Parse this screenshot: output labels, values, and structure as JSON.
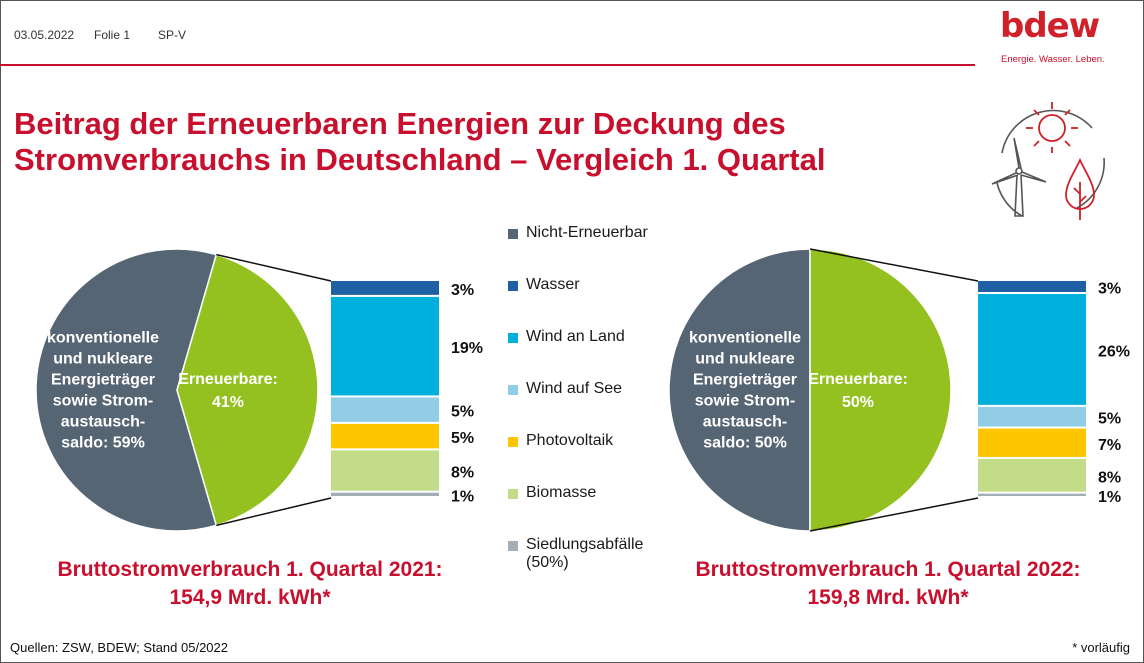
{
  "header": {
    "date": "03.05.2022",
    "slide": "Folie 1",
    "code": "SP-V"
  },
  "logo": {
    "name": "bdew",
    "tagline": "Energie. Wasser. Leben."
  },
  "title_line1": "Beitrag der Erneuerbaren Energien zur Deckung des",
  "title_line2": "Stromverbrauchs in Deutschland – Vergleich 1. Quartal",
  "legend": [
    {
      "label": "Nicht-Erneuerbar",
      "color": "#566573"
    },
    {
      "label": "Wasser",
      "color": "#1f5fa3"
    },
    {
      "label": "Wind an Land",
      "color": "#00b0dc"
    },
    {
      "label": "Wind auf See",
      "color": "#92cde6"
    },
    {
      "label": "Photovoltaik",
      "color": "#fdc600"
    },
    {
      "label": "Biomasse",
      "color": "#c3dc8a"
    },
    {
      "label": "Siedlungsabfälle",
      "label2": "(50%)",
      "color": "#a4aeb6"
    }
  ],
  "chart_data": [
    {
      "type": "pie",
      "slices": [
        {
          "label": "konventionelle und nukleare Energieträger sowie Strom-austausch-saldo: 59%",
          "value": 59,
          "color": "#566573"
        },
        {
          "label": "Erneuerbare: 41%",
          "value": 41,
          "color": "#94c11f"
        }
      ],
      "breakdown": {
        "type": "bar",
        "stacked": true,
        "series": [
          {
            "name": "Wasser",
            "value": 3,
            "label": "3%"
          },
          {
            "name": "Wind an Land",
            "value": 19,
            "label": "19%"
          },
          {
            "name": "Wind auf See",
            "value": 5,
            "label": "5%"
          },
          {
            "name": "Photovoltaik",
            "value": 5,
            "label": "5%"
          },
          {
            "name": "Biomasse",
            "value": 8,
            "label": "8%"
          },
          {
            "name": "Siedlungsabfälle",
            "value": 1,
            "label": "1%"
          }
        ]
      },
      "total_line1": "Bruttostromverbrauch 1. Quartal 2021:",
      "total_line2": "154,9 Mrd. kWh*"
    },
    {
      "type": "pie",
      "slices": [
        {
          "label": "konventionelle und nukleare Energieträger sowie Strom-austausch-saldo: 50%",
          "value": 50,
          "color": "#566573"
        },
        {
          "label": "Erneuerbare: 50%",
          "value": 50,
          "color": "#94c11f"
        }
      ],
      "breakdown": {
        "type": "bar",
        "stacked": true,
        "series": [
          {
            "name": "Wasser",
            "value": 3,
            "label": "3%"
          },
          {
            "name": "Wind an Land",
            "value": 26,
            "label": "26%"
          },
          {
            "name": "Wind auf See",
            "value": 5,
            "label": "5%"
          },
          {
            "name": "Photovoltaik",
            "value": 7,
            "label": "7%"
          },
          {
            "name": "Biomasse",
            "value": 8,
            "label": "8%"
          },
          {
            "name": "Siedlungsabfälle",
            "value": 1,
            "label": "1%"
          }
        ]
      },
      "total_line1": "Bruttostromverbrauch 1. Quartal 2022:",
      "total_line2": "159,8 Mrd. kWh*"
    }
  ],
  "pie_text": {
    "left": {
      "conv": [
        "konventionelle",
        "und nukleare",
        "Energieträger",
        "sowie Strom-",
        "austausch-",
        "saldo: 59%"
      ],
      "ren": [
        "Erneuerbare:",
        "41%"
      ]
    },
    "right": {
      "conv": [
        "konventionelle",
        "und nukleare",
        "Energieträger",
        "sowie Strom-",
        "austausch-",
        "saldo: 50%"
      ],
      "ren": [
        "Erneuerbare:",
        "50%"
      ]
    }
  },
  "footer": {
    "source": "Quellen: ZSW, BDEW; Stand 05/2022",
    "note": "* vorläufig"
  },
  "icon": "renewable-energy-icon"
}
